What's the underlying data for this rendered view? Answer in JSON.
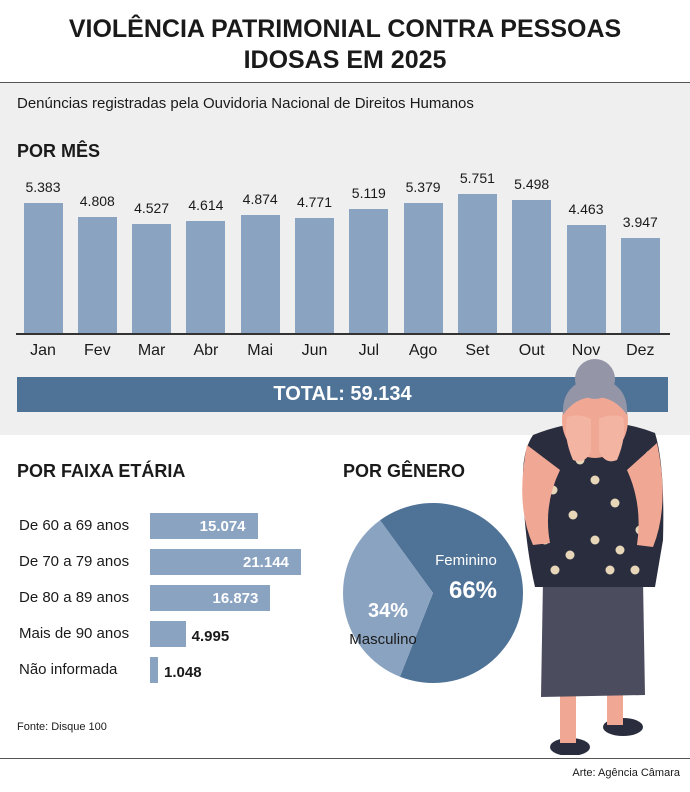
{
  "title_line1": "VIOLÊNCIA PATRIMONIAL CONTRA PESSOAS",
  "title_line2": "IDOSAS EM 2025",
  "subtitle": "Denúncias registradas pela Ouvidoria Nacional de Direitos Humanos",
  "total_label": "TOTAL: 59.134",
  "source": "Fonte: Disque 100",
  "credit": "Arte: Agência Câmara",
  "colors": {
    "bar": "#8aa3c1",
    "feminino": "#4f7297",
    "masculino": "#8aa3c1",
    "band": "#efefef"
  },
  "illustration": "elderly-woman-covering-face",
  "chart_data": [
    {
      "type": "bar",
      "title": "POR MÊS",
      "categories": [
        "Jan",
        "Fev",
        "Mar",
        "Abr",
        "Mai",
        "Jun",
        "Jul",
        "Ago",
        "Set",
        "Out",
        "Nov",
        "Dez"
      ],
      "values": [
        5383,
        4808,
        4527,
        4614,
        4874,
        4771,
        5119,
        5379,
        5751,
        5498,
        4463,
        3947
      ],
      "value_labels": [
        "5.383",
        "4.808",
        "4.527",
        "4.614",
        "4.874",
        "4.771",
        "5.119",
        "5.379",
        "5.751",
        "5.498",
        "4.463",
        "3.947"
      ],
      "ylim": [
        0,
        5751
      ],
      "grid": false
    },
    {
      "type": "bar",
      "orientation": "horizontal",
      "title": "POR FAIXA ETÁRIA",
      "categories": [
        "De 60 a 69 anos",
        "De 70 a 79 anos",
        "De 80 a 89 anos",
        "Mais de 90 anos",
        "Não informada"
      ],
      "values": [
        15074,
        21144,
        16873,
        4995,
        1048
      ],
      "value_labels": [
        "15.074",
        "21.144",
        "16.873",
        "4.995",
        "1.048"
      ],
      "xlim": [
        0,
        21144
      ]
    },
    {
      "type": "pie",
      "title": "POR GÊNERO",
      "labels": [
        "Feminino",
        "Masculino"
      ],
      "values": [
        66,
        34
      ],
      "value_labels": [
        "66%",
        "34%"
      ]
    }
  ]
}
